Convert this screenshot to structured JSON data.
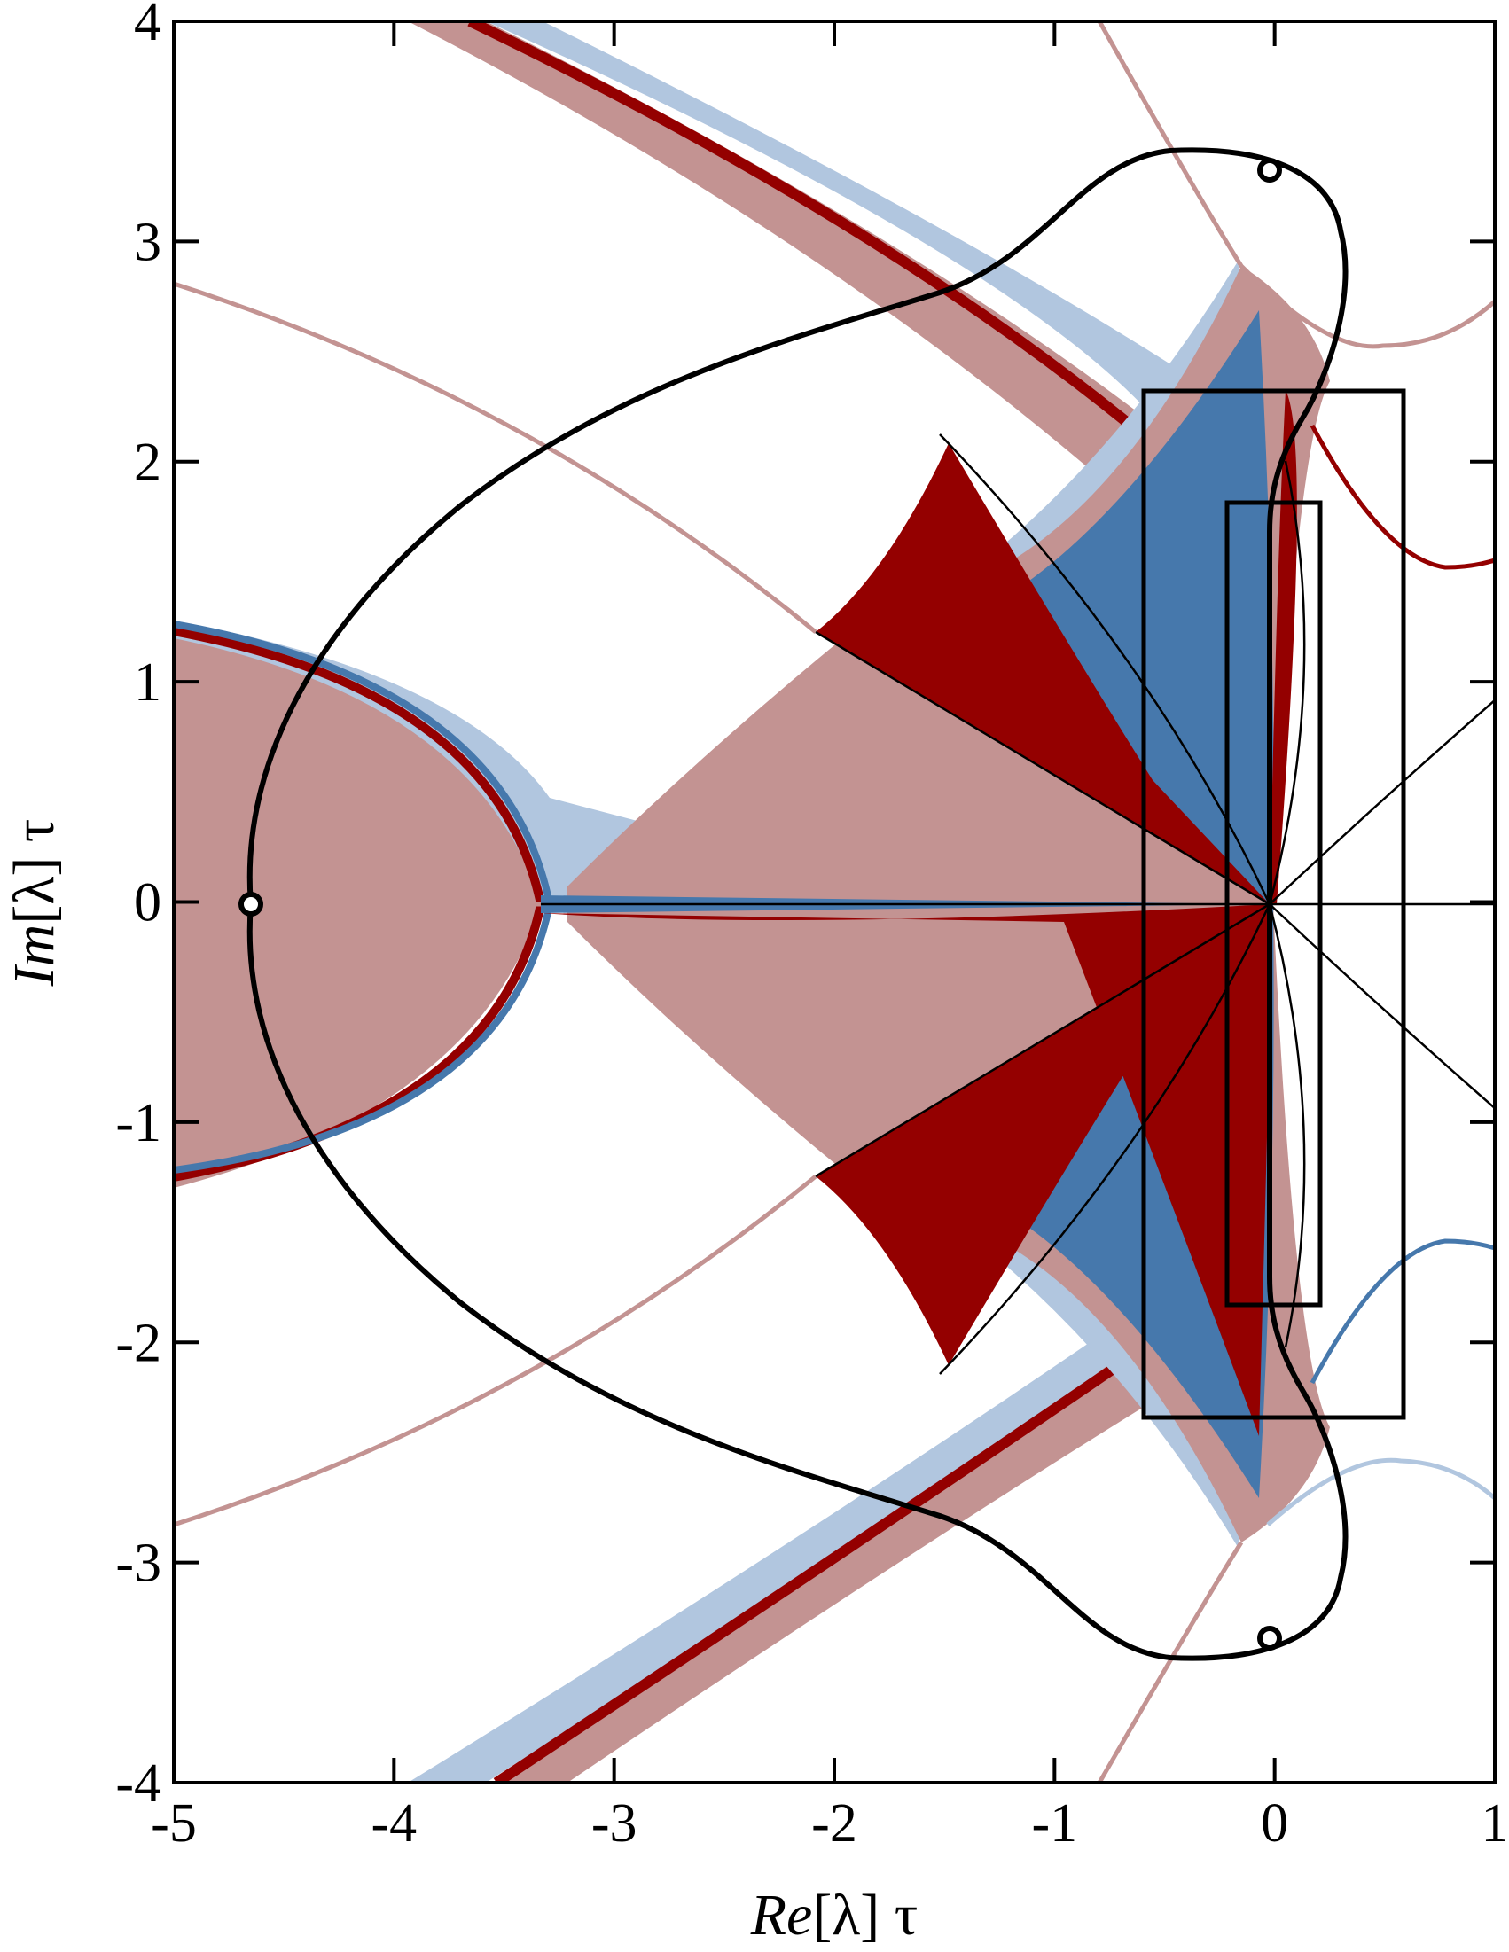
{
  "chart_data": {
    "type": "region-plot",
    "xlabel": {
      "italic": "Re",
      "rest": "[λ] τ"
    },
    "ylabel": {
      "italic": "Im",
      "rest": "[λ] τ"
    },
    "xlim": [
      -5,
      1
    ],
    "ylim": [
      -4,
      4
    ],
    "x_ticks": [
      -5,
      -4,
      -3,
      -2,
      -1,
      0,
      1
    ],
    "y_ticks": [
      -4,
      -3,
      -2,
      -1,
      0,
      1,
      2,
      3,
      4
    ],
    "grid": false,
    "colors": {
      "dark_red": "#940000",
      "light_red": "#c39392",
      "dark_blue": "#4678ac",
      "light_blue": "#b1c6df",
      "contour": "#000000"
    },
    "rectangles": [
      {
        "x": [
          -0.6,
          0.6
        ],
        "y": [
          -2.35,
          2.35
        ]
      },
      {
        "x": [
          -0.2,
          0.22
        ],
        "y": [
          -1.83,
          1.83
        ]
      }
    ],
    "markers": [
      {
        "x": -4.65,
        "y": 0
      },
      {
        "x": 0,
        "y": 3.35
      },
      {
        "x": 0,
        "y": -3.35
      }
    ]
  }
}
